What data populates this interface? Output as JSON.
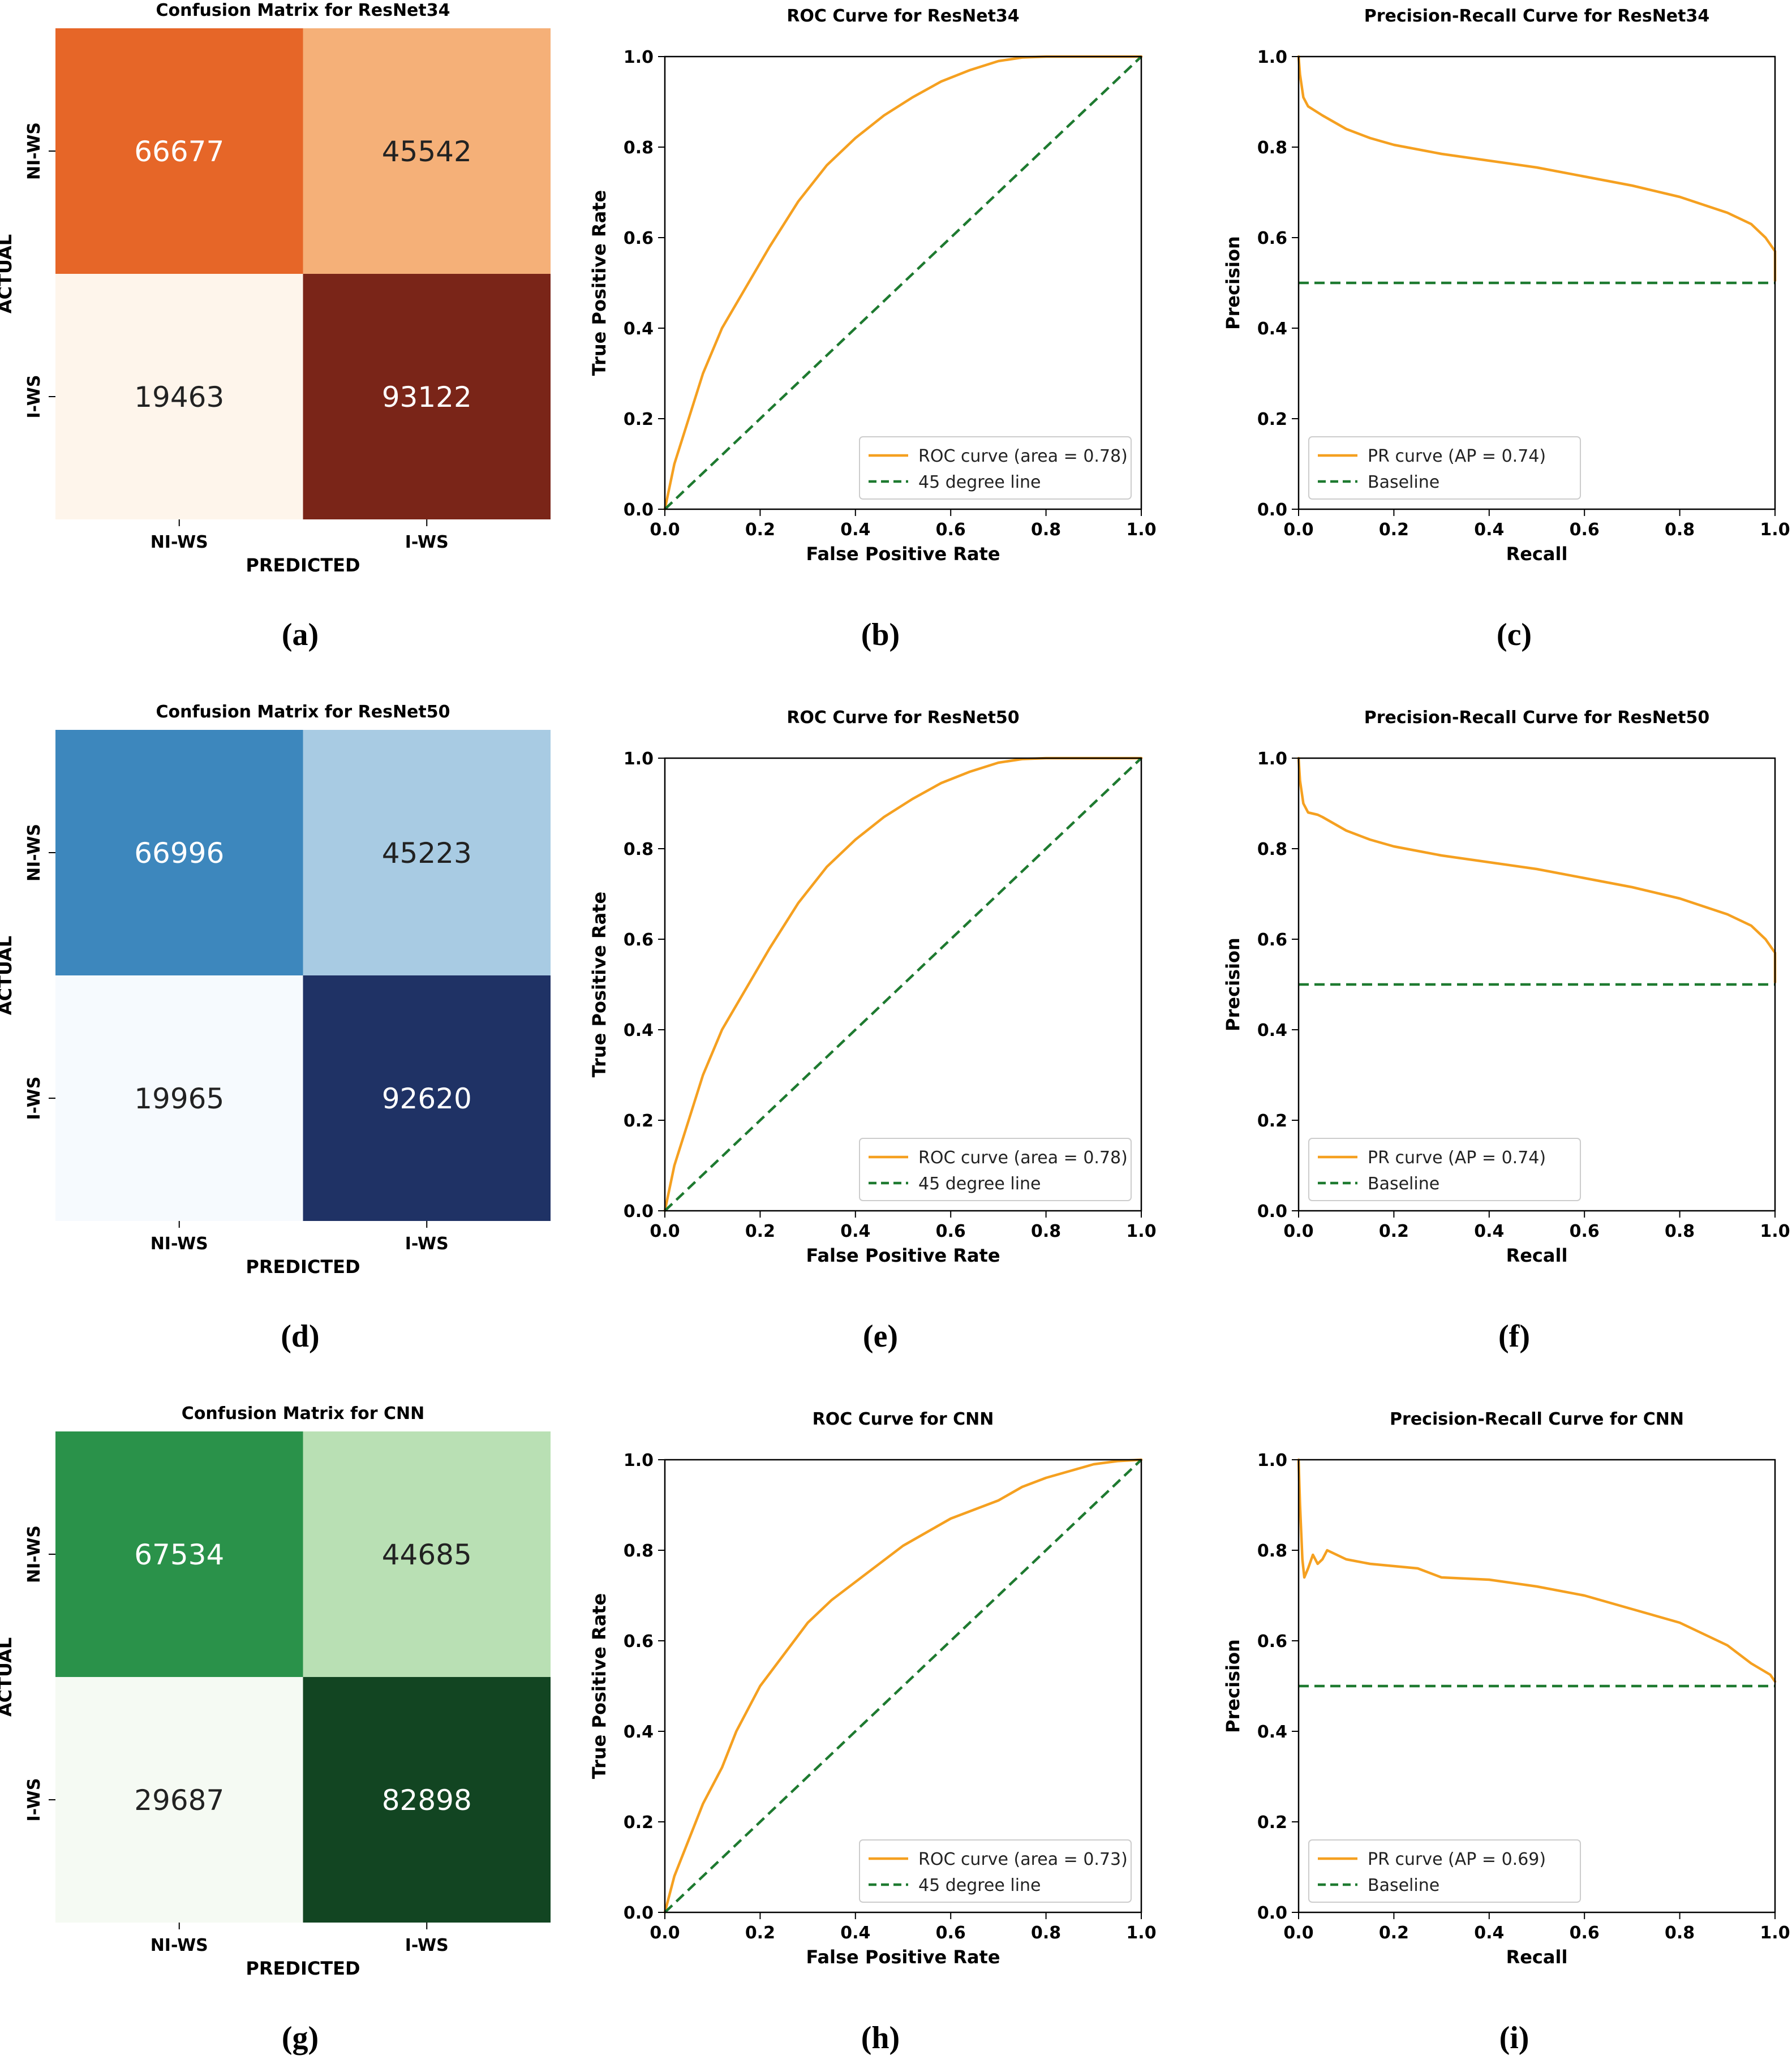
{
  "colors": {
    "roc_line": "#F5A020",
    "baseline": "#1E7A30",
    "axis": "#000000",
    "text": "#000000",
    "white": "#ffffff"
  },
  "chart_data": [
    {
      "type": "heatmap",
      "panel_label": "(a)",
      "title": "Confusion Matrix for ResNet34",
      "xlabel": "PREDICTED",
      "ylabel": "ACTUAL",
      "x_categories": [
        "NI-WS",
        "I-WS"
      ],
      "y_categories": [
        "NI-WS",
        "I-WS"
      ],
      "values": [
        [
          66677,
          45542
        ],
        [
          19463,
          93122
        ]
      ],
      "cell_colors": [
        [
          "#E66628",
          "#F5B078"
        ],
        [
          "#FEF5EB",
          "#7A2518"
        ]
      ],
      "text_colors": [
        [
          "#ffffff",
          "#222222"
        ],
        [
          "#222222",
          "#ffffff"
        ]
      ]
    },
    {
      "type": "line",
      "panel_label": "(b)",
      "title": "ROC Curve for ResNet34",
      "xlabel": "False Positive Rate",
      "ylabel": "True Positive Rate",
      "xlim": [
        0,
        1
      ],
      "ylim": [
        0,
        1
      ],
      "xticks": [
        "0.0",
        "0.2",
        "0.4",
        "0.6",
        "0.8",
        "1.0"
      ],
      "yticks": [
        "0.0",
        "0.2",
        "0.4",
        "0.6",
        "0.8",
        "1.0"
      ],
      "legend_position": "lower-right",
      "series": [
        {
          "name": "ROC curve (area = 0.78)",
          "style": "solid",
          "color": "#F5A020",
          "x": [
            0,
            0.02,
            0.05,
            0.08,
            0.12,
            0.17,
            0.22,
            0.28,
            0.34,
            0.4,
            0.46,
            0.52,
            0.58,
            0.64,
            0.7,
            0.75,
            0.8,
            0.85,
            0.9,
            1.0
          ],
          "y": [
            0,
            0.1,
            0.2,
            0.3,
            0.4,
            0.49,
            0.58,
            0.68,
            0.76,
            0.82,
            0.87,
            0.91,
            0.945,
            0.97,
            0.99,
            0.998,
            1.0,
            1.0,
            1.0,
            1.0
          ]
        },
        {
          "name": "45 degree line",
          "style": "dashed",
          "color": "#1E7A30",
          "x": [
            0,
            1
          ],
          "y": [
            0,
            1
          ]
        }
      ]
    },
    {
      "type": "line",
      "panel_label": "(c)",
      "title": "Precision-Recall Curve for ResNet34",
      "xlabel": "Recall",
      "ylabel": "Precision",
      "xlim": [
        0,
        1
      ],
      "ylim": [
        0,
        1
      ],
      "xticks": [
        "0.0",
        "0.2",
        "0.4",
        "0.6",
        "0.8",
        "1.0"
      ],
      "yticks": [
        "0.0",
        "0.2",
        "0.4",
        "0.6",
        "0.8",
        "1.0"
      ],
      "legend_position": "lower-left",
      "series": [
        {
          "name": "PR curve (AP = 0.74)",
          "style": "solid",
          "color": "#F5A020",
          "x": [
            0,
            0.003,
            0.01,
            0.02,
            0.05,
            0.1,
            0.15,
            0.2,
            0.25,
            0.3,
            0.4,
            0.5,
            0.6,
            0.7,
            0.8,
            0.9,
            0.95,
            0.98,
            1.0,
            1.0
          ],
          "y": [
            1.0,
            0.96,
            0.91,
            0.89,
            0.87,
            0.84,
            0.82,
            0.805,
            0.795,
            0.785,
            0.77,
            0.755,
            0.735,
            0.715,
            0.69,
            0.655,
            0.63,
            0.6,
            0.57,
            0.505
          ]
        },
        {
          "name": "Baseline",
          "style": "dashed",
          "color": "#1E7A30",
          "x": [
            0,
            1
          ],
          "y": [
            0.5,
            0.5
          ]
        }
      ]
    },
    {
      "type": "heatmap",
      "panel_label": "(d)",
      "title": "Confusion Matrix for ResNet50",
      "xlabel": "PREDICTED",
      "ylabel": "ACTUAL",
      "x_categories": [
        "NI-WS",
        "I-WS"
      ],
      "y_categories": [
        "NI-WS",
        "I-WS"
      ],
      "values": [
        [
          66996,
          45223
        ],
        [
          19965,
          92620
        ]
      ],
      "cell_colors": [
        [
          "#3D87BD",
          "#A8CBE3"
        ],
        [
          "#F6FAFE",
          "#1F3265"
        ]
      ],
      "text_colors": [
        [
          "#ffffff",
          "#222222"
        ],
        [
          "#222222",
          "#ffffff"
        ]
      ]
    },
    {
      "type": "line",
      "panel_label": "(e)",
      "title": "ROC Curve for ResNet50",
      "xlabel": "False Positive Rate",
      "ylabel": "True Positive Rate",
      "xlim": [
        0,
        1
      ],
      "ylim": [
        0,
        1
      ],
      "xticks": [
        "0.0",
        "0.2",
        "0.4",
        "0.6",
        "0.8",
        "1.0"
      ],
      "yticks": [
        "0.0",
        "0.2",
        "0.4",
        "0.6",
        "0.8",
        "1.0"
      ],
      "legend_position": "lower-right",
      "series": [
        {
          "name": "ROC curve (area = 0.78)",
          "style": "solid",
          "color": "#F5A020",
          "x": [
            0,
            0.02,
            0.05,
            0.08,
            0.12,
            0.17,
            0.22,
            0.28,
            0.34,
            0.4,
            0.46,
            0.52,
            0.58,
            0.64,
            0.7,
            0.75,
            0.8,
            0.85,
            0.9,
            1.0
          ],
          "y": [
            0,
            0.1,
            0.2,
            0.3,
            0.4,
            0.49,
            0.58,
            0.68,
            0.76,
            0.82,
            0.87,
            0.91,
            0.945,
            0.97,
            0.99,
            0.998,
            1.0,
            1.0,
            1.0,
            1.0
          ]
        },
        {
          "name": "45 degree line",
          "style": "dashed",
          "color": "#1E7A30",
          "x": [
            0,
            1
          ],
          "y": [
            0,
            1
          ]
        }
      ]
    },
    {
      "type": "line",
      "panel_label": "(f)",
      "title": "Precision-Recall Curve for ResNet50",
      "xlabel": "Recall",
      "ylabel": "Precision",
      "xlim": [
        0,
        1
      ],
      "ylim": [
        0,
        1
      ],
      "xticks": [
        "0.0",
        "0.2",
        "0.4",
        "0.6",
        "0.8",
        "1.0"
      ],
      "yticks": [
        "0.0",
        "0.2",
        "0.4",
        "0.6",
        "0.8",
        "1.0"
      ],
      "legend_position": "lower-left",
      "series": [
        {
          "name": "PR curve (AP = 0.74)",
          "style": "solid",
          "color": "#F5A020",
          "x": [
            0,
            0.003,
            0.01,
            0.02,
            0.04,
            0.05,
            0.1,
            0.15,
            0.2,
            0.25,
            0.3,
            0.4,
            0.5,
            0.6,
            0.7,
            0.8,
            0.9,
            0.95,
            0.98,
            1.0,
            1.0
          ],
          "y": [
            1.0,
            0.95,
            0.9,
            0.88,
            0.875,
            0.87,
            0.84,
            0.82,
            0.805,
            0.795,
            0.785,
            0.77,
            0.755,
            0.735,
            0.715,
            0.69,
            0.655,
            0.63,
            0.6,
            0.57,
            0.505
          ]
        },
        {
          "name": "Baseline",
          "style": "dashed",
          "color": "#1E7A30",
          "x": [
            0,
            1
          ],
          "y": [
            0.5,
            0.5
          ]
        }
      ]
    },
    {
      "type": "heatmap",
      "panel_label": "(g)",
      "title": "Confusion Matrix for CNN",
      "xlabel": "PREDICTED",
      "ylabel": "ACTUAL",
      "x_categories": [
        "NI-WS",
        "I-WS"
      ],
      "y_categories": [
        "NI-WS",
        "I-WS"
      ],
      "values": [
        [
          67534,
          44685
        ],
        [
          29687,
          82898
        ]
      ],
      "cell_colors": [
        [
          "#2A924A",
          "#B9E0B4"
        ],
        [
          "#F5FAF3",
          "#124522"
        ]
      ],
      "text_colors": [
        [
          "#ffffff",
          "#222222"
        ],
        [
          "#222222",
          "#ffffff"
        ]
      ]
    },
    {
      "type": "line",
      "panel_label": "(h)",
      "title": "ROC Curve for CNN",
      "xlabel": "False Positive Rate",
      "ylabel": "True Positive Rate",
      "xlim": [
        0,
        1
      ],
      "ylim": [
        0,
        1
      ],
      "xticks": [
        "0.0",
        "0.2",
        "0.4",
        "0.6",
        "0.8",
        "1.0"
      ],
      "yticks": [
        "0.0",
        "0.2",
        "0.4",
        "0.6",
        "0.8",
        "1.0"
      ],
      "legend_position": "lower-right",
      "series": [
        {
          "name": "ROC curve (area = 0.73)",
          "style": "solid",
          "color": "#F5A020",
          "x": [
            0,
            0.02,
            0.05,
            0.08,
            0.12,
            0.15,
            0.2,
            0.25,
            0.3,
            0.35,
            0.4,
            0.45,
            0.5,
            0.55,
            0.6,
            0.65,
            0.7,
            0.75,
            0.8,
            0.85,
            0.9,
            0.95,
            1.0
          ],
          "y": [
            0,
            0.08,
            0.16,
            0.24,
            0.32,
            0.4,
            0.5,
            0.57,
            0.64,
            0.69,
            0.73,
            0.77,
            0.81,
            0.84,
            0.87,
            0.89,
            0.91,
            0.94,
            0.96,
            0.975,
            0.99,
            0.997,
            1.0
          ]
        },
        {
          "name": "45 degree line",
          "style": "dashed",
          "color": "#1E7A30",
          "x": [
            0,
            1
          ],
          "y": [
            0,
            1
          ]
        }
      ]
    },
    {
      "type": "line",
      "panel_label": "(i)",
      "title": "Precision-Recall Curve for CNN",
      "xlabel": "Recall",
      "ylabel": "Precision",
      "xlim": [
        0,
        1
      ],
      "ylim": [
        0,
        1
      ],
      "xticks": [
        "0.0",
        "0.2",
        "0.4",
        "0.6",
        "0.8",
        "1.0"
      ],
      "yticks": [
        "0.0",
        "0.2",
        "0.4",
        "0.6",
        "0.8",
        "1.0"
      ],
      "legend_position": "lower-left",
      "series": [
        {
          "name": "PR curve (AP = 0.69)",
          "style": "solid",
          "color": "#F5A020",
          "x": [
            0,
            0.003,
            0.008,
            0.012,
            0.02,
            0.03,
            0.04,
            0.05,
            0.06,
            0.1,
            0.15,
            0.2,
            0.25,
            0.3,
            0.4,
            0.5,
            0.6,
            0.7,
            0.8,
            0.9,
            0.95,
            0.99,
            1.0
          ],
          "y": [
            1.0,
            0.9,
            0.78,
            0.74,
            0.76,
            0.79,
            0.77,
            0.78,
            0.8,
            0.78,
            0.77,
            0.765,
            0.76,
            0.74,
            0.735,
            0.72,
            0.7,
            0.67,
            0.64,
            0.59,
            0.55,
            0.525,
            0.51
          ]
        },
        {
          "name": "Baseline",
          "style": "dashed",
          "color": "#1E7A30",
          "x": [
            0,
            1
          ],
          "y": [
            0.5,
            0.5
          ]
        }
      ]
    }
  ]
}
